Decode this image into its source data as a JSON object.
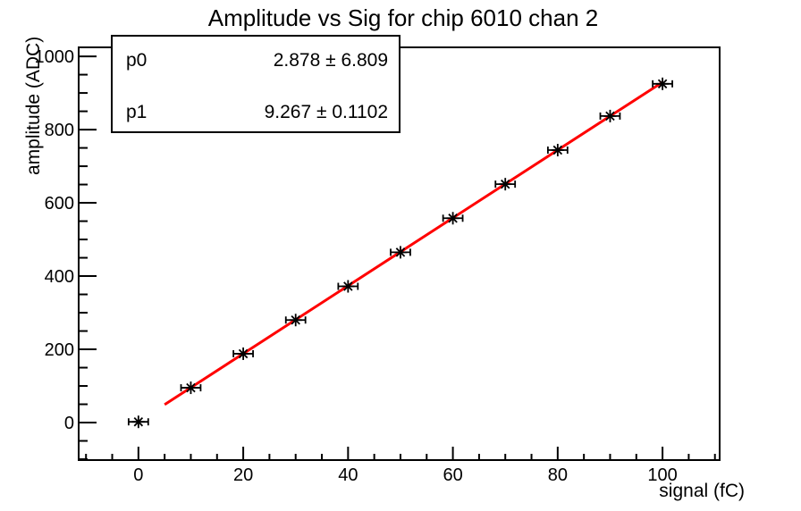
{
  "window": {
    "background": "#ffffff",
    "frame_color": "#000000"
  },
  "chart_data": {
    "type": "scatter",
    "title": "Amplitude vs Sig for chip 6010 chan 2",
    "xlabel": "signal (fC)",
    "ylabel": "amplitude (ADC)",
    "xlim": [
      -11.4,
      110.9
    ],
    "ylim": [
      -102.4,
      1024.6
    ],
    "x_major_ticks": [
      0,
      20,
      40,
      60,
      80,
      100
    ],
    "x_minor_step": 5,
    "x_major_step": 20,
    "y_major_ticks": [
      0,
      200,
      400,
      600,
      800,
      1000
    ],
    "y_minor_step": 50,
    "y_major_step": 200,
    "grid": false,
    "legend_position": "top-left",
    "marker": "asterisk-star-with-x-error-bars",
    "marker_color": "#000000",
    "points": {
      "x": [
        0,
        10,
        20,
        30,
        40,
        50,
        60,
        70,
        80,
        90,
        100
      ],
      "y": [
        2,
        95,
        188,
        280,
        372,
        465,
        558,
        651,
        744,
        837,
        925
      ],
      "xerr": 1.7
    },
    "fit": {
      "type": "linear",
      "p0": 2.878,
      "p1": 9.267,
      "x_start": 5,
      "x_end": 100,
      "color": "#ff0000",
      "line_width": 3
    }
  },
  "stats_box": {
    "rows": [
      {
        "name": "p0",
        "value": "2.878 ± 6.809"
      },
      {
        "name": "p1",
        "value": "9.267 ± 0.1102"
      }
    ]
  }
}
